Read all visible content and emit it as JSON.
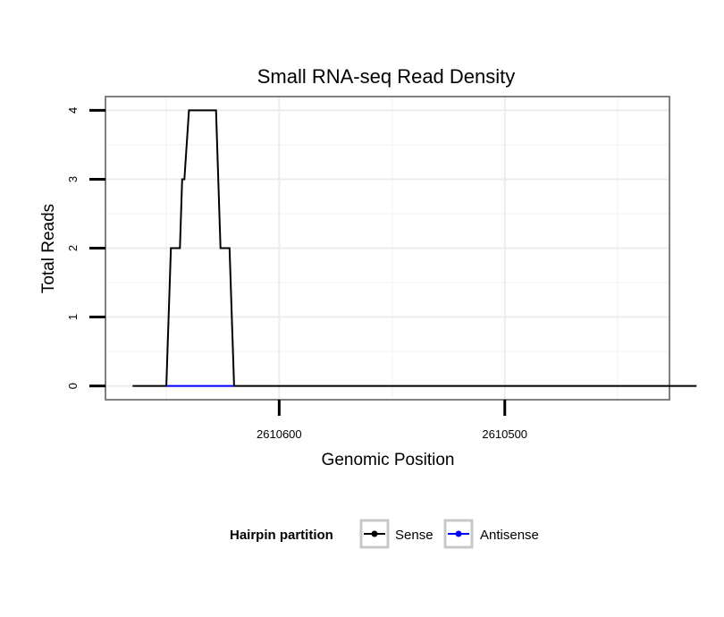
{
  "chart_data": {
    "type": "line",
    "title": "Small RNA-seq Read Density",
    "xlabel": "Genomic Position",
    "ylabel": "Total Reads",
    "x_reversed": true,
    "xlim": [
      2610677,
      2610427
    ],
    "ylim": [
      -0.2,
      4.2
    ],
    "x_ticks": [
      2610600,
      2610500
    ],
    "x_tick_labels": [
      "2610600",
      "2610500"
    ],
    "y_ticks": [
      0,
      1,
      2,
      3,
      4
    ],
    "y_tick_labels": [
      "0",
      "1",
      "2",
      "3",
      "4"
    ],
    "grid": true,
    "legend": {
      "title": "Hairpin partition",
      "position": "bottom"
    },
    "series": [
      {
        "name": "Sense",
        "color": "#000000",
        "points": [
          [
            2610665,
            0
          ],
          [
            2610650,
            0
          ],
          [
            2610648,
            2
          ],
          [
            2610644,
            2
          ],
          [
            2610643,
            3
          ],
          [
            2610642,
            3
          ],
          [
            2610640,
            4
          ],
          [
            2610628,
            4
          ],
          [
            2610626,
            2
          ],
          [
            2610622,
            2
          ],
          [
            2610620,
            0
          ],
          [
            2610415,
            0
          ]
        ]
      },
      {
        "name": "Antisense",
        "color": "#0000ff",
        "points": [
          [
            2610650,
            0
          ],
          [
            2610620,
            0
          ]
        ]
      }
    ]
  }
}
